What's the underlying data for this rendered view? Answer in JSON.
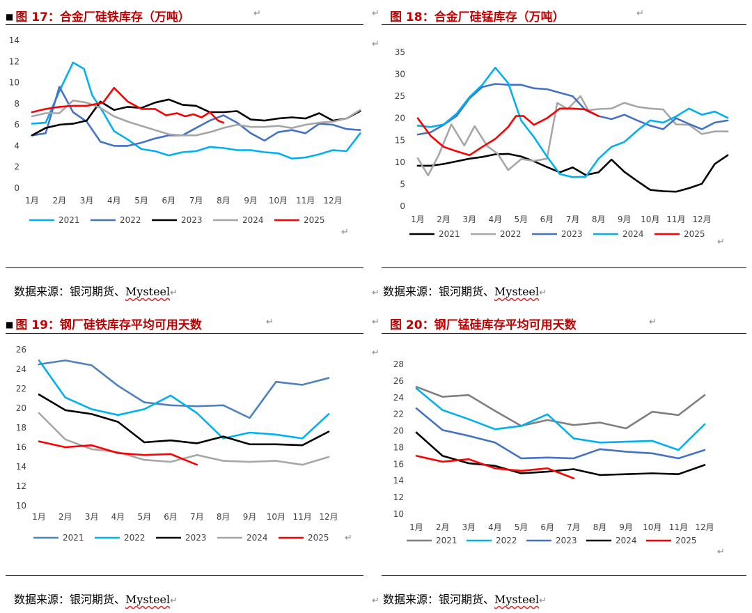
{
  "return_mark": "↵",
  "source_prefix": "数据来源：银河期货、",
  "source_brand": "Mysteel",
  "panels": [
    {
      "id": "fig17",
      "title": "图 17：合金厂硅铁库存（万吨）",
      "chart_data": {
        "type": "line",
        "categories": [
          "1月",
          "2月",
          "3月",
          "4月",
          "5月",
          "6月",
          "7月",
          "8月",
          "9月",
          "10月",
          "11月",
          "12月"
        ],
        "ylim": [
          0,
          14
        ],
        "yticks": [
          0,
          2,
          4,
          6,
          8,
          10,
          12,
          14
        ],
        "legend": "bottom",
        "grid": false,
        "series": [
          {
            "name": "2021",
            "color": "#00b0f0",
            "x": [
              0,
              0.5,
              1,
              1.5,
              1.9,
              2.2,
              2.6,
              3,
              3.5,
              4,
              4.5,
              5,
              5.5,
              6,
              6.5,
              7,
              7.5,
              8,
              8.5,
              9,
              9.5,
              10,
              10.5,
              11,
              11.5,
              12
            ],
            "y": [
              6.1,
              6.2,
              9.2,
              11.9,
              11.3,
              8.8,
              7.2,
              5.4,
              4.6,
              3.7,
              3.5,
              3.1,
              3.4,
              3.5,
              3.9,
              3.8,
              3.6,
              3.6,
              3.4,
              3.3,
              2.8,
              2.9,
              3.2,
              3.6,
              3.5,
              5.2
            ]
          },
          {
            "name": "2022",
            "color": "#4472c4",
            "x": [
              0,
              0.5,
              1,
              1.5,
              2,
              2.5,
              3,
              3.5,
              4,
              4.5,
              5,
              5.5,
              6,
              6.5,
              7,
              7.5,
              8,
              8.5,
              9,
              9.5,
              10,
              10.5,
              11,
              11.5,
              12
            ],
            "y": [
              5,
              5.2,
              9.6,
              7.2,
              6.3,
              4.4,
              4,
              4,
              4.3,
              4.7,
              5,
              5,
              5.7,
              6.4,
              6.9,
              6.2,
              5.2,
              4.5,
              5.3,
              5.5,
              5.2,
              6.1,
              6,
              5.6,
              5.5
            ]
          },
          {
            "name": "2023",
            "color": "#000000",
            "x": [
              0,
              0.5,
              1,
              1.5,
              2,
              2.5,
              3,
              3.5,
              4,
              4.5,
              5,
              5.5,
              6,
              6.5,
              7,
              7.5,
              8,
              8.5,
              9,
              9.5,
              10,
              10.5,
              11,
              11.5,
              12
            ],
            "y": [
              5,
              5.7,
              6,
              6.1,
              6.4,
              8.2,
              7.4,
              7.7,
              7.6,
              8.1,
              8.4,
              7.9,
              7.8,
              7.2,
              7.2,
              7.3,
              6.5,
              6.4,
              6.6,
              6.7,
              6.6,
              7.1,
              6.4,
              6.6,
              7.3
            ]
          },
          {
            "name": "2024",
            "color": "#a6a6a6",
            "x": [
              0,
              0.5,
              1,
              1.5,
              2,
              2.5,
              3,
              3.5,
              4,
              4.5,
              5,
              5.5,
              6,
              6.5,
              7,
              7.5,
              8,
              8.5,
              9,
              9.5,
              10,
              10.5,
              11,
              11.5,
              12
            ],
            "y": [
              6.8,
              7.1,
              7.1,
              8.3,
              8.1,
              7.6,
              6.8,
              6.3,
              5.9,
              5.5,
              5.1,
              5.0,
              5.0,
              5.3,
              5.7,
              6.0,
              5.8,
              5.8,
              5.9,
              5.7,
              6.0,
              6.2,
              6.3,
              6.6,
              7.4
            ]
          },
          {
            "name": "2025",
            "color": "#ff0000",
            "x": [
              0,
              0.5,
              1,
              1.5,
              2,
              2.6,
              3,
              3.5,
              4,
              4.5,
              4.9,
              5.3,
              5.6,
              5.9,
              6.2,
              6.5,
              6.8,
              7
            ],
            "y": [
              7.2,
              7.5,
              7.7,
              7.8,
              7.8,
              8.1,
              9.5,
              8.2,
              7.5,
              7.5,
              6.9,
              7.1,
              6.8,
              7.0,
              6.7,
              7.2,
              6.4,
              6.2
            ]
          }
        ]
      }
    },
    {
      "id": "fig18",
      "title": "图 18：合金厂硅锰库存（万吨）",
      "chart_data": {
        "type": "line",
        "categories": [
          "1月",
          "2月",
          "3月",
          "4月",
          "5月",
          "6月",
          "7月",
          "8月",
          "9月",
          "10月",
          "11月",
          "12月"
        ],
        "ylim": [
          0,
          35
        ],
        "yticks": [
          0,
          5,
          10,
          15,
          20,
          25,
          30,
          35
        ],
        "legend": "bottom",
        "grid": false,
        "series": [
          {
            "name": "2021",
            "color": "#000000",
            "x": [
              0,
              0.5,
              1,
              1.5,
              2,
              2.5,
              3,
              3.5,
              4,
              4.5,
              5,
              5.5,
              6,
              6.5,
              7,
              7.5,
              8,
              8.5,
              9,
              9.5,
              10,
              10.5,
              11,
              11.5,
              12
            ],
            "y": [
              9.2,
              9.2,
              9.6,
              10.2,
              10.8,
              11.2,
              11.8,
              11.9,
              11.3,
              10.2,
              8.9,
              7.7,
              8.8,
              7.1,
              7.7,
              10.6,
              7.8,
              5.7,
              3.7,
              3.4,
              3.3,
              4.1,
              5.1,
              9.6,
              11.6
            ]
          },
          {
            "name": "2022",
            "color": "#a6a6a6",
            "x": [
              0,
              0.4,
              0.8,
              1.3,
              1.8,
              2.2,
              2.7,
              3.1,
              3.5,
              4,
              4.5,
              5,
              5.4,
              5.8,
              6.3,
              6.6,
              7,
              7.5,
              8,
              8.5,
              9,
              9.5,
              10,
              10.5,
              11,
              11.5,
              12
            ],
            "y": [
              10.9,
              7.0,
              11.5,
              18.6,
              13.8,
              18.2,
              13.6,
              11.9,
              8.2,
              10.7,
              10.3,
              10.8,
              23.5,
              22.1,
              25.0,
              21.8,
              22.1,
              22.2,
              23.5,
              22.6,
              22.2,
              22.0,
              18.6,
              18.5,
              16.4,
              17.0,
              17.0
            ]
          },
          {
            "name": "2023",
            "color": "#4472c4",
            "x": [
              0,
              0.5,
              1,
              1.5,
              2,
              2.5,
              3,
              3.5,
              4,
              4.5,
              5,
              5.5,
              6,
              6.5,
              7,
              7.5,
              8,
              8.5,
              9,
              9.5,
              10,
              10.5,
              11,
              11.5,
              12
            ],
            "y": [
              16.3,
              16.8,
              18.5,
              20.5,
              24.5,
              27.1,
              27.8,
              27.6,
              27.6,
              26.8,
              26.6,
              25.8,
              25.0,
              21.8,
              20.5,
              19.8,
              20.8,
              19.5,
              18.3,
              17.5,
              20.0,
              18.7,
              17.5,
              19.0,
              19.5
            ]
          },
          {
            "name": "2024",
            "color": "#00b0f0",
            "x": [
              0,
              0.5,
              1,
              1.5,
              2,
              2.5,
              3,
              3.5,
              4,
              4.5,
              5,
              5.5,
              6,
              6.5,
              7,
              7.5,
              8,
              8.5,
              9,
              9.5,
              10,
              10.5,
              11,
              11.5,
              12
            ],
            "y": [
              18.3,
              18.0,
              18.6,
              21.0,
              24.8,
              27.6,
              31.5,
              28.0,
              19.5,
              15.7,
              11.3,
              7.3,
              6.6,
              6.7,
              10.8,
              13.5,
              14.6,
              17.2,
              19.5,
              19.0,
              20.4,
              22.2,
              20.8,
              21.5,
              20.1
            ]
          },
          {
            "name": "2025",
            "color": "#ff0000",
            "x": [
              0,
              0.5,
              1,
              1.5,
              2,
              2.5,
              3,
              3.5,
              3.8,
              4.1,
              4.5,
              5,
              5.5,
              6,
              6.5,
              7
            ],
            "y": [
              20.0,
              16.0,
              13.5,
              12.5,
              11.6,
              13.5,
              15.3,
              18.0,
              20.5,
              20.5,
              18.5,
              20.0,
              22.2,
              22.2,
              22.0,
              20.5
            ]
          }
        ]
      }
    },
    {
      "id": "fig19",
      "title": "图 19：钢厂硅铁库存平均可用天数",
      "chart_data": {
        "type": "line",
        "categories": [
          "1月",
          "2月",
          "3月",
          "4月",
          "5月",
          "6月",
          "7月",
          "8月",
          "9月",
          "10月",
          "11月",
          "12月"
        ],
        "ylim": [
          10,
          26
        ],
        "yticks": [
          10,
          12,
          14,
          16,
          18,
          20,
          22,
          24,
          26
        ],
        "legend": "bottom",
        "grid": false,
        "series": [
          {
            "name": "2021",
            "color": "#4f81bd",
            "x": [
              0,
              1,
              2,
              3,
              4,
              5,
              6,
              7,
              8,
              9,
              10,
              11
            ],
            "y": [
              24.5,
              24.9,
              24.4,
              22.3,
              20.6,
              20.3,
              20.2,
              20.3,
              19.0,
              22.7,
              22.4,
              23.1
            ]
          },
          {
            "name": "2022",
            "color": "#00b0f0",
            "x": [
              0,
              1,
              2,
              3,
              4,
              5,
              6,
              7,
              8,
              9,
              10,
              11
            ],
            "y": [
              24.9,
              21.1,
              19.9,
              19.3,
              19.9,
              21.3,
              19.5,
              16.9,
              17.5,
              17.3,
              16.9,
              19.4
            ]
          },
          {
            "name": "2023",
            "color": "#000000",
            "x": [
              0,
              1,
              2,
              3,
              4,
              5,
              6,
              7,
              8,
              9,
              10,
              11
            ],
            "y": [
              21.4,
              19.8,
              19.4,
              18.6,
              16.5,
              16.7,
              16.4,
              17.1,
              16.3,
              16.3,
              16.2,
              17.6
            ]
          },
          {
            "name": "2024",
            "color": "#a6a6a6",
            "x": [
              0,
              1,
              2,
              3,
              4,
              5,
              6,
              7,
              8,
              9,
              10,
              11
            ],
            "y": [
              19.5,
              16.8,
              15.8,
              15.5,
              14.7,
              14.5,
              15.2,
              14.6,
              14.5,
              14.6,
              14.2,
              15.0
            ]
          },
          {
            "name": "2025",
            "color": "#ff0000",
            "x": [
              0,
              1,
              2,
              3,
              4,
              5,
              6
            ],
            "y": [
              16.6,
              16.0,
              16.2,
              15.4,
              15.2,
              15.3,
              14.2
            ]
          }
        ]
      }
    },
    {
      "id": "fig20",
      "title": "图 20：钢厂锰硅库存平均可用天数",
      "chart_data": {
        "type": "line",
        "categories": [
          "1月",
          "2月",
          "3月",
          "4月",
          "5月",
          "6月",
          "7月",
          "8月",
          "9月",
          "10月",
          "11月",
          "12月"
        ],
        "ylim": [
          10,
          28
        ],
        "yticks": [
          10,
          12,
          14,
          16,
          18,
          20,
          22,
          24,
          26,
          28
        ],
        "legend": "bottom",
        "grid": false,
        "series": [
          {
            "name": "2021",
            "color": "#7f7f7f",
            "x": [
              0,
              1,
              2,
              3,
              4,
              5,
              6,
              7,
              8,
              9,
              10,
              11
            ],
            "y": [
              25.3,
              24.1,
              24.3,
              22.4,
              20.6,
              21.3,
              20.7,
              21.0,
              20.3,
              22.3,
              21.9,
              24.3
            ]
          },
          {
            "name": "2022",
            "color": "#00b0f0",
            "x": [
              0,
              1,
              2,
              3,
              4,
              5,
              6,
              7,
              8,
              9,
              10,
              11
            ],
            "y": [
              25.1,
              22.5,
              21.4,
              20.2,
              20.6,
              22.0,
              19.1,
              18.6,
              18.7,
              18.8,
              17.7,
              20.8
            ]
          },
          {
            "name": "2023",
            "color": "#4472c4",
            "x": [
              0,
              1,
              2,
              3,
              4,
              5,
              6,
              7,
              8,
              9,
              10,
              11
            ],
            "y": [
              22.7,
              20.1,
              19.4,
              18.6,
              16.7,
              16.8,
              16.7,
              17.8,
              17.5,
              17.3,
              16.7,
              17.7
            ]
          },
          {
            "name": "2024",
            "color": "#000000",
            "x": [
              0,
              1,
              2,
              3,
              4,
              5,
              6,
              7,
              8,
              9,
              10,
              11
            ],
            "y": [
              19.8,
              17.0,
              16.1,
              15.8,
              14.9,
              15.1,
              15.4,
              14.7,
              14.8,
              14.9,
              14.8,
              15.9
            ]
          },
          {
            "name": "2025",
            "color": "#ff0000",
            "x": [
              0,
              1,
              2,
              3,
              4,
              5,
              6
            ],
            "y": [
              17.0,
              16.3,
              16.6,
              15.5,
              15.2,
              15.5,
              14.3
            ]
          }
        ]
      }
    }
  ]
}
